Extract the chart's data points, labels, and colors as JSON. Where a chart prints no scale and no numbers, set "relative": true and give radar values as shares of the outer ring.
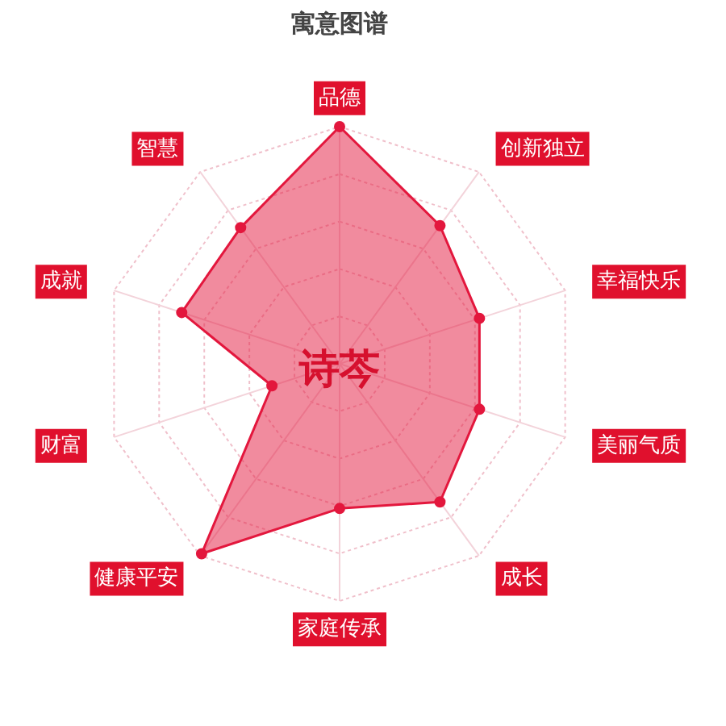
{
  "chart_data": {
    "type": "radar",
    "title": "寓意图谱",
    "annotations": [
      "诗芩"
    ],
    "categories": [
      "品德",
      "创新独立",
      "幸福快乐",
      "美丽气质",
      "成长",
      "家庭传承",
      "健康平安",
      "财富",
      "成就",
      "智慧"
    ],
    "relative": true,
    "series": [
      {
        "color": "#e3173d",
        "values": [
          1.0,
          0.72,
          0.62,
          0.62,
          0.72,
          0.61,
          0.99,
          0.3,
          0.7,
          0.71
        ]
      }
    ],
    "grid": true,
    "marker": "circle",
    "line_style": "solid"
  }
}
